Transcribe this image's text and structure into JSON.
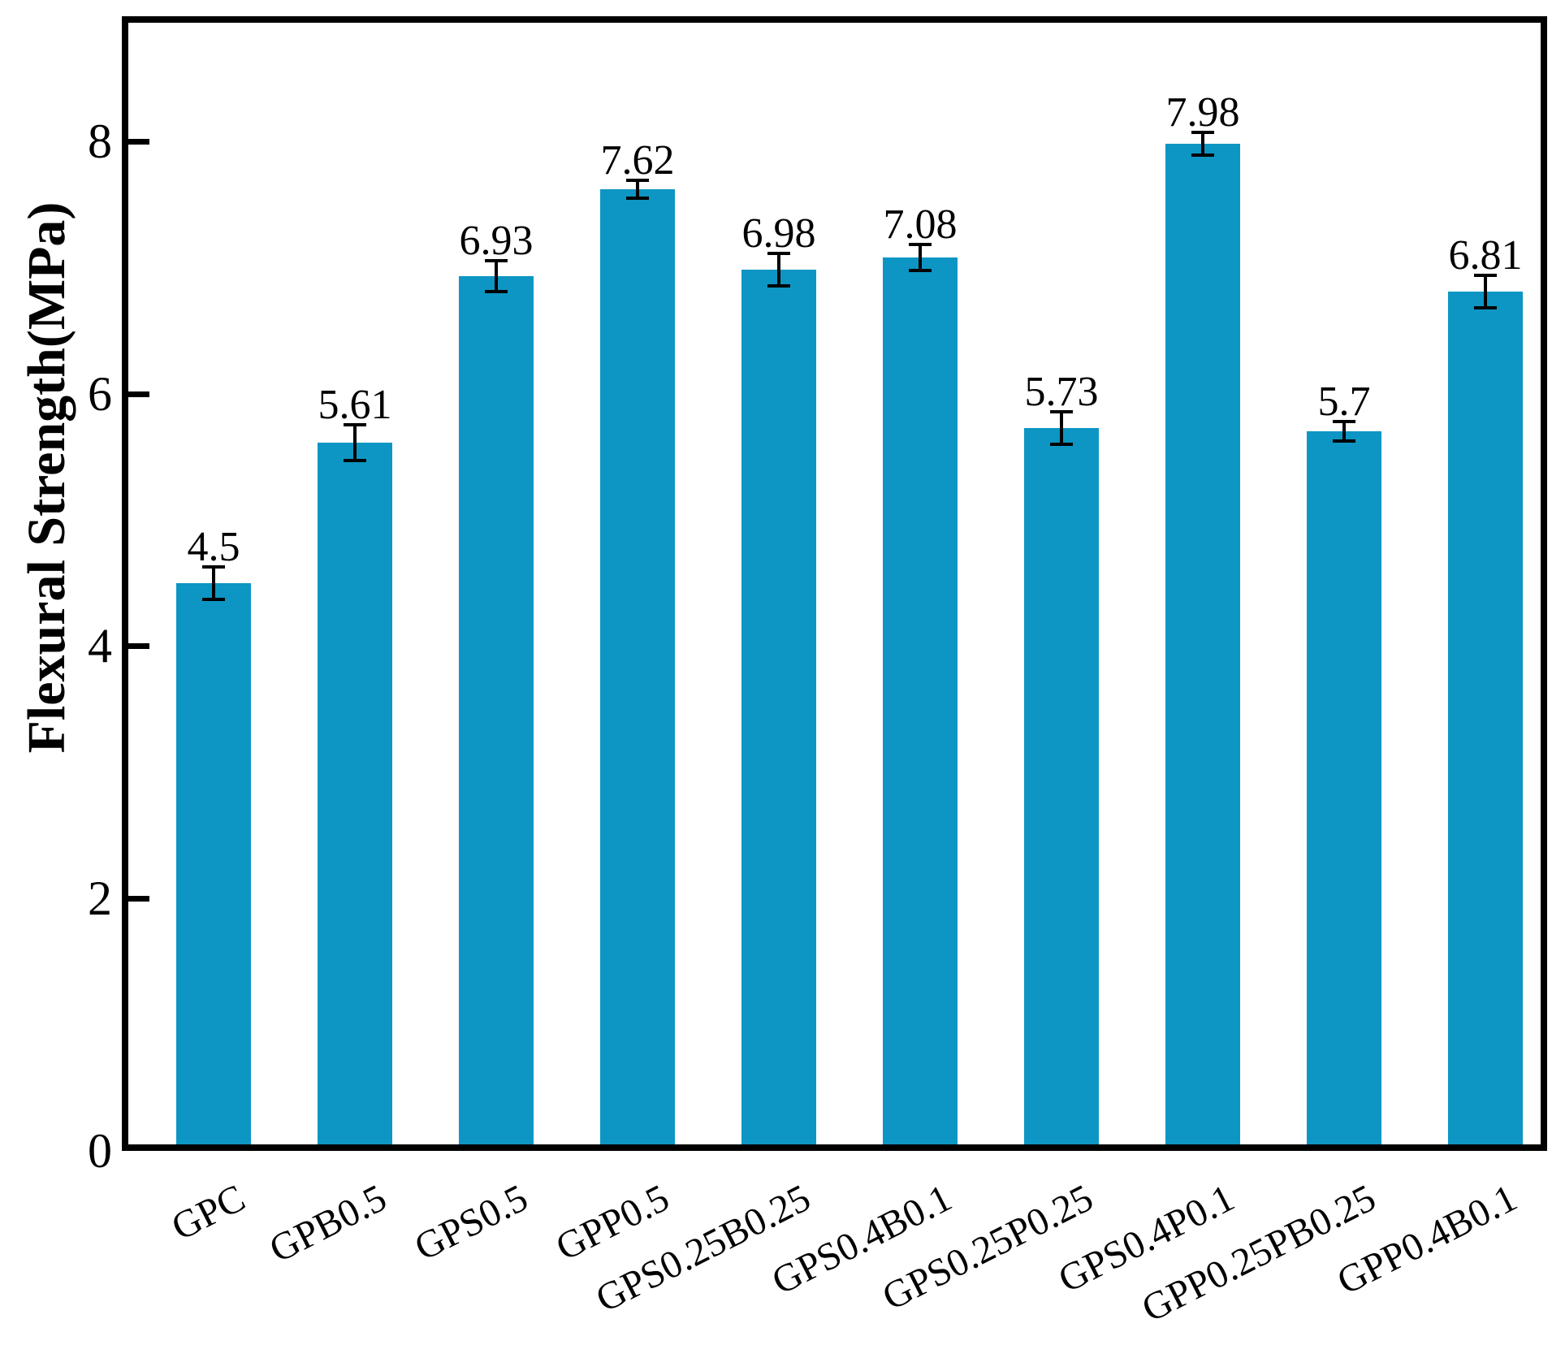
{
  "figure": {
    "background": "#ffffff"
  },
  "chart_data": {
    "type": "bar",
    "ylabel": "Flexural Strength(MPa)",
    "categories": [
      "GPC",
      "GPB0.5",
      "GPS0.5",
      "GPP0.5",
      "GPS0.25B0.25",
      "GPS0.4B0.1",
      "GPS0.25P0.25",
      "GPS0.4P0.1",
      "GPP0.25PB0.25",
      "GPP0.4B0.1"
    ],
    "values": [
      4.5,
      5.61,
      6.93,
      7.62,
      6.98,
      7.08,
      5.73,
      7.98,
      5.7,
      6.81
    ],
    "value_labels": [
      "4.5",
      "5.61",
      "6.93",
      "7.62",
      "6.98",
      "7.08",
      "5.73",
      "7.98",
      "5.7",
      "6.81"
    ],
    "error_bars": [
      0.13,
      0.14,
      0.12,
      0.07,
      0.13,
      0.1,
      0.13,
      0.09,
      0.08,
      0.13
    ],
    "yticks": [
      0,
      2,
      4,
      6,
      8
    ],
    "ylim": [
      0,
      9
    ],
    "bar_color": "#0D96C4",
    "axis_color": "#000000",
    "error_bar_color": "#000000",
    "grid": false,
    "legend_position": "none",
    "x_tick_label_rotation_deg": 27
  }
}
